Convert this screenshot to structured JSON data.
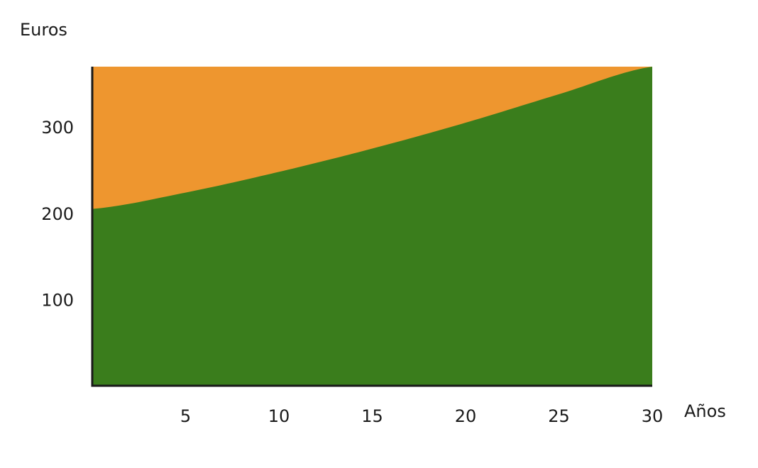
{
  "chart_data": {
    "type": "area",
    "title": "",
    "xlabel": "Años",
    "ylabel": "Euros",
    "xlim": [
      0,
      30
    ],
    "ylim": [
      0,
      370
    ],
    "x_ticks": [
      5,
      10,
      15,
      20,
      25,
      30
    ],
    "y_ticks": [
      100,
      200,
      300
    ],
    "grid": false,
    "legend": "none",
    "x": [
      0,
      5,
      10,
      15,
      20,
      25,
      30
    ],
    "series": [
      {
        "values": [
          205,
          224,
          248,
          275,
          305,
          338,
          370
        ],
        "color": "#3a7d1c"
      }
    ],
    "background_fill": {
      "upper": 370,
      "color": "#ee962f"
    }
  }
}
